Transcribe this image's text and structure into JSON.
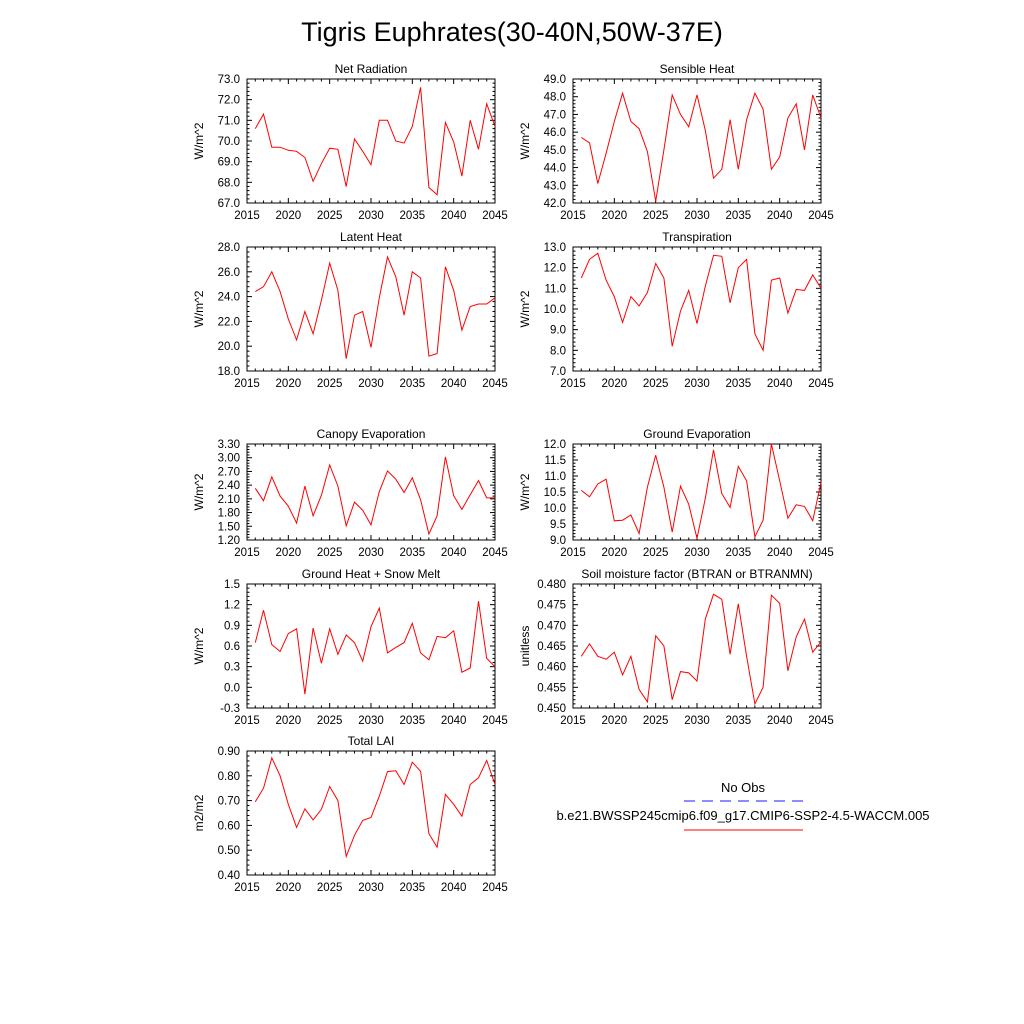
{
  "title": "Tigris Euphrates(30-40N,50W-37E)",
  "colors": {
    "series": "#ff0000",
    "obs": "#1a1aff",
    "axis": "#000000"
  },
  "legend": {
    "obs_label": "No Obs",
    "model_label": "b.e21.BWSSP245cmip6.f09_g17.CMIP6-SSP2-4.5-WACCM.005"
  },
  "chart_data": [
    {
      "type": "line",
      "title": "Net Radiation",
      "ylabel": "W/m^2",
      "xlim": [
        2015,
        2045
      ],
      "ylim": [
        67.0,
        73.0
      ],
      "xticks": [
        2015,
        2020,
        2025,
        2030,
        2035,
        2040,
        2045
      ],
      "xtick_labels": [
        "2015",
        "2020",
        "2025",
        "2030",
        "2035",
        "2040",
        "2045"
      ],
      "yticks": [
        67.0,
        68.0,
        69.0,
        70.0,
        71.0,
        72.0,
        73.0
      ],
      "ytick_labels": [
        "67.0",
        "68.0",
        "69.0",
        "70.0",
        "71.0",
        "72.0",
        "73.0"
      ],
      "x": [
        2016,
        2017,
        2018,
        2019,
        2020,
        2021,
        2022,
        2023,
        2024,
        2025,
        2026,
        2027,
        2028,
        2029,
        2030,
        2031,
        2032,
        2033,
        2034,
        2035,
        2036,
        2037,
        2038,
        2039,
        2040,
        2041,
        2042,
        2043,
        2044,
        2045
      ],
      "values": [
        70.6,
        71.3,
        69.7,
        69.7,
        69.55,
        69.5,
        69.2,
        68.05,
        68.9,
        69.65,
        69.6,
        67.8,
        70.1,
        69.5,
        68.85,
        71.0,
        71.0,
        70.0,
        69.9,
        70.7,
        72.6,
        67.75,
        67.4,
        70.9,
        69.95,
        68.3,
        71.0,
        69.6,
        71.8,
        70.7
      ]
    },
    {
      "type": "line",
      "title": "Sensible Heat",
      "ylabel": "W/m^2",
      "xlim": [
        2015,
        2045
      ],
      "ylim": [
        42.0,
        49.0
      ],
      "xticks": [
        2015,
        2020,
        2025,
        2030,
        2035,
        2040,
        2045
      ],
      "xtick_labels": [
        "2015",
        "2020",
        "2025",
        "2030",
        "2035",
        "2040",
        "2045"
      ],
      "yticks": [
        42.0,
        43.0,
        44.0,
        45.0,
        46.0,
        47.0,
        48.0,
        49.0
      ],
      "ytick_labels": [
        "42.0",
        "43.0",
        "44.0",
        "45.0",
        "46.0",
        "47.0",
        "48.0",
        "49.0"
      ],
      "x": [
        2016,
        2017,
        2018,
        2019,
        2020,
        2021,
        2022,
        2023,
        2024,
        2025,
        2026,
        2027,
        2028,
        2029,
        2030,
        2031,
        2032,
        2033,
        2034,
        2035,
        2036,
        2037,
        2038,
        2039,
        2040,
        2041,
        2042,
        2043,
        2044,
        2045
      ],
      "values": [
        45.7,
        45.4,
        43.1,
        44.8,
        46.6,
        48.2,
        46.6,
        46.2,
        44.9,
        42.1,
        45.0,
        48.1,
        47.0,
        46.3,
        48.1,
        46.1,
        43.4,
        43.9,
        46.7,
        43.9,
        46.7,
        48.2,
        47.3,
        43.9,
        44.6,
        46.8,
        47.6,
        45.0,
        48.1,
        46.8
      ]
    },
    {
      "type": "line",
      "title": "Latent Heat",
      "ylabel": "W/m^2",
      "xlim": [
        2015,
        2045
      ],
      "ylim": [
        18.0,
        28.0
      ],
      "xticks": [
        2015,
        2020,
        2025,
        2030,
        2035,
        2040,
        2045
      ],
      "xtick_labels": [
        "2015",
        "2020",
        "2025",
        "2030",
        "2035",
        "2040",
        "2045"
      ],
      "yticks": [
        18.0,
        20.0,
        22.0,
        24.0,
        26.0,
        28.0
      ],
      "ytick_labels": [
        "18.0",
        "20.0",
        "22.0",
        "24.0",
        "26.0",
        "28.0"
      ],
      "x": [
        2016,
        2017,
        2018,
        2019,
        2020,
        2021,
        2022,
        2023,
        2024,
        2025,
        2026,
        2027,
        2028,
        2029,
        2030,
        2031,
        2032,
        2033,
        2034,
        2035,
        2036,
        2037,
        2038,
        2039,
        2040,
        2041,
        2042,
        2043,
        2044,
        2045
      ],
      "values": [
        24.4,
        24.8,
        26.0,
        24.4,
        22.2,
        20.5,
        22.8,
        21.0,
        23.7,
        26.7,
        24.5,
        19.0,
        22.5,
        22.8,
        19.9,
        23.9,
        27.2,
        25.6,
        22.5,
        26.0,
        25.5,
        19.2,
        19.4,
        26.4,
        24.5,
        21.3,
        23.2,
        23.4,
        23.4,
        23.9
      ]
    },
    {
      "type": "line",
      "title": "Transpiration",
      "ylabel": "W/m^2",
      "xlim": [
        2015,
        2045
      ],
      "ylim": [
        7.0,
        13.0
      ],
      "xticks": [
        2015,
        2020,
        2025,
        2030,
        2035,
        2040,
        2045
      ],
      "xtick_labels": [
        "2015",
        "2020",
        "2025",
        "2030",
        "2035",
        "2040",
        "2045"
      ],
      "yticks": [
        7.0,
        8.0,
        9.0,
        10.0,
        11.0,
        12.0,
        13.0
      ],
      "ytick_labels": [
        "7.0",
        "8.0",
        "9.0",
        "10.0",
        "11.0",
        "12.0",
        "13.0"
      ],
      "x": [
        2016,
        2017,
        2018,
        2019,
        2020,
        2021,
        2022,
        2023,
        2024,
        2025,
        2026,
        2027,
        2028,
        2029,
        2030,
        2031,
        2032,
        2033,
        2034,
        2035,
        2036,
        2037,
        2038,
        2039,
        2040,
        2041,
        2042,
        2043,
        2044,
        2045
      ],
      "values": [
        11.5,
        12.4,
        12.7,
        11.4,
        10.6,
        9.35,
        10.6,
        10.15,
        10.8,
        12.2,
        11.5,
        8.2,
        9.9,
        10.9,
        9.3,
        11.1,
        12.6,
        12.55,
        10.3,
        12.0,
        12.4,
        8.8,
        8.0,
        11.4,
        11.5,
        9.8,
        10.95,
        10.9,
        11.65,
        11.0
      ]
    },
    {
      "type": "line",
      "title": "Canopy Evaporation",
      "ylabel": "W/m^2",
      "xlim": [
        2015,
        2045
      ],
      "ylim": [
        1.2,
        3.3
      ],
      "xticks": [
        2015,
        2020,
        2025,
        2030,
        2035,
        2040,
        2045
      ],
      "xtick_labels": [
        "2015",
        "2020",
        "2025",
        "2030",
        "2035",
        "2040",
        "2045"
      ],
      "yticks": [
        1.2,
        1.5,
        1.8,
        2.1,
        2.4,
        2.7,
        3.0,
        3.3
      ],
      "ytick_labels": [
        "1.20",
        "1.50",
        "1.80",
        "2.10",
        "2.40",
        "2.70",
        "3.00",
        "3.30"
      ],
      "x": [
        2016,
        2017,
        2018,
        2019,
        2020,
        2021,
        2022,
        2023,
        2024,
        2025,
        2026,
        2027,
        2028,
        2029,
        2030,
        2031,
        2032,
        2033,
        2034,
        2035,
        2036,
        2037,
        2038,
        2039,
        2040,
        2041,
        2042,
        2043,
        2044,
        2045
      ],
      "values": [
        2.33,
        2.06,
        2.58,
        2.16,
        1.94,
        1.57,
        2.38,
        1.73,
        2.18,
        2.84,
        2.38,
        1.51,
        2.03,
        1.85,
        1.53,
        2.26,
        2.71,
        2.53,
        2.24,
        2.56,
        2.08,
        1.33,
        1.73,
        3.02,
        2.17,
        1.87,
        2.19,
        2.5,
        2.12,
        2.12
      ]
    },
    {
      "type": "line",
      "title": "Ground Evaporation",
      "ylabel": "W/m^2",
      "xlim": [
        2015,
        2045
      ],
      "ylim": [
        9.0,
        12.0
      ],
      "xticks": [
        2015,
        2020,
        2025,
        2030,
        2035,
        2040,
        2045
      ],
      "xtick_labels": [
        "2015",
        "2020",
        "2025",
        "2030",
        "2035",
        "2040",
        "2045"
      ],
      "yticks": [
        9.0,
        9.5,
        10.0,
        10.5,
        11.0,
        11.5,
        12.0
      ],
      "ytick_labels": [
        "9.0",
        "9.5",
        "10.0",
        "10.5",
        "11.0",
        "11.5",
        "12.0"
      ],
      "x": [
        2016,
        2017,
        2018,
        2019,
        2020,
        2021,
        2022,
        2023,
        2024,
        2025,
        2026,
        2027,
        2028,
        2029,
        2030,
        2031,
        2032,
        2033,
        2034,
        2035,
        2036,
        2037,
        2038,
        2039,
        2040,
        2041,
        2042,
        2043,
        2044,
        2045
      ],
      "values": [
        10.55,
        10.35,
        10.75,
        10.9,
        9.6,
        9.62,
        9.78,
        9.2,
        10.65,
        11.65,
        10.65,
        9.25,
        10.68,
        10.12,
        9.05,
        10.3,
        11.82,
        10.45,
        10.02,
        11.3,
        10.85,
        9.1,
        9.62,
        12.0,
        10.85,
        9.68,
        10.1,
        10.05,
        9.6,
        10.8
      ]
    },
    {
      "type": "line",
      "title": "Ground Heat + Snow Melt",
      "ylabel": "W/m^2",
      "xlim": [
        2015,
        2045
      ],
      "ylim": [
        -0.3,
        1.5
      ],
      "xticks": [
        2015,
        2020,
        2025,
        2030,
        2035,
        2040,
        2045
      ],
      "xtick_labels": [
        "2015",
        "2020",
        "2025",
        "2030",
        "2035",
        "2040",
        "2045"
      ],
      "yticks": [
        -0.3,
        0.0,
        0.3,
        0.6,
        0.9,
        1.2,
        1.5
      ],
      "ytick_labels": [
        "-0.3",
        "0.0",
        "0.3",
        "0.6",
        "0.9",
        "1.2",
        "1.5"
      ],
      "x": [
        2016,
        2017,
        2018,
        2019,
        2020,
        2021,
        2022,
        2023,
        2024,
        2025,
        2026,
        2027,
        2028,
        2029,
        2030,
        2031,
        2032,
        2033,
        2034,
        2035,
        2036,
        2037,
        2038,
        2039,
        2040,
        2041,
        2042,
        2043,
        2044,
        2045
      ],
      "values": [
        0.65,
        1.12,
        0.62,
        0.52,
        0.78,
        0.85,
        -0.1,
        0.86,
        0.35,
        0.85,
        0.48,
        0.76,
        0.65,
        0.38,
        0.88,
        1.15,
        0.5,
        0.58,
        0.65,
        0.93,
        0.5,
        0.4,
        0.74,
        0.72,
        0.82,
        0.22,
        0.28,
        1.25,
        0.42,
        0.3
      ]
    },
    {
      "type": "line",
      "title": "Soil moisture factor (BTRAN or BTRANMN)",
      "ylabel": "unitless",
      "xlim": [
        2015,
        2045
      ],
      "ylim": [
        0.45,
        0.48
      ],
      "xticks": [
        2015,
        2020,
        2025,
        2030,
        2035,
        2040,
        2045
      ],
      "xtick_labels": [
        "2015",
        "2020",
        "2025",
        "2030",
        "2035",
        "2040",
        "2045"
      ],
      "yticks": [
        0.45,
        0.455,
        0.46,
        0.465,
        0.47,
        0.475,
        0.48
      ],
      "ytick_labels": [
        "0.450",
        "0.455",
        "0.460",
        "0.465",
        "0.470",
        "0.475",
        "0.480"
      ],
      "x": [
        2016,
        2017,
        2018,
        2019,
        2020,
        2021,
        2022,
        2023,
        2024,
        2025,
        2026,
        2027,
        2028,
        2029,
        2030,
        2031,
        2032,
        2033,
        2034,
        2035,
        2036,
        2037,
        2038,
        2039,
        2040,
        2041,
        2042,
        2043,
        2044,
        2045
      ],
      "values": [
        0.4625,
        0.4655,
        0.4625,
        0.4618,
        0.4635,
        0.458,
        0.4625,
        0.4545,
        0.4515,
        0.4675,
        0.465,
        0.452,
        0.4588,
        0.4585,
        0.4565,
        0.4715,
        0.4775,
        0.4763,
        0.463,
        0.4752,
        0.4625,
        0.451,
        0.455,
        0.4773,
        0.4753,
        0.459,
        0.4672,
        0.4715,
        0.4635,
        0.466
      ]
    },
    {
      "type": "line",
      "title": "Total LAI",
      "ylabel": "m2/m2",
      "xlim": [
        2015,
        2045
      ],
      "ylim": [
        0.4,
        0.9
      ],
      "xticks": [
        2015,
        2020,
        2025,
        2030,
        2035,
        2040,
        2045
      ],
      "xtick_labels": [
        "2015",
        "2020",
        "2025",
        "2030",
        "2035",
        "2040",
        "2045"
      ],
      "yticks": [
        0.4,
        0.5,
        0.6,
        0.7,
        0.8,
        0.9
      ],
      "ytick_labels": [
        "0.40",
        "0.50",
        "0.60",
        "0.70",
        "0.80",
        "0.90"
      ],
      "x": [
        2016,
        2017,
        2018,
        2019,
        2020,
        2021,
        2022,
        2023,
        2024,
        2025,
        2026,
        2027,
        2028,
        2029,
        2030,
        2031,
        2032,
        2033,
        2034,
        2035,
        2036,
        2037,
        2038,
        2039,
        2040,
        2041,
        2042,
        2043,
        2044,
        2045
      ],
      "values": [
        0.695,
        0.75,
        0.872,
        0.8,
        0.685,
        0.592,
        0.667,
        0.622,
        0.665,
        0.757,
        0.7,
        0.475,
        0.56,
        0.62,
        0.632,
        0.718,
        0.817,
        0.82,
        0.765,
        0.855,
        0.818,
        0.567,
        0.512,
        0.725,
        0.685,
        0.637,
        0.765,
        0.792,
        0.862,
        0.765
      ]
    }
  ]
}
